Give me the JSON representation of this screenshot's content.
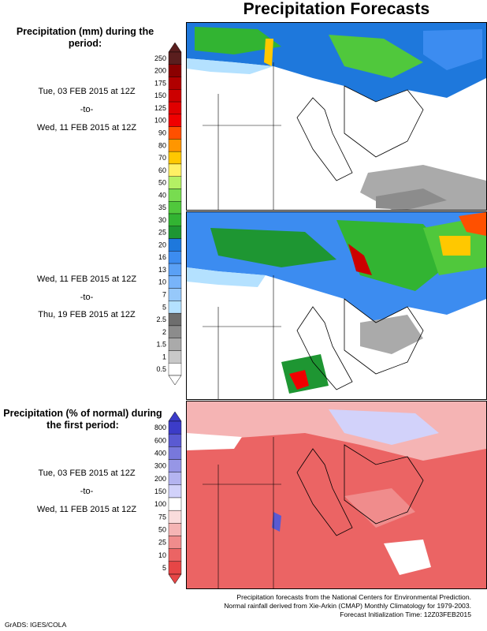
{
  "title": "Precipitation Forecasts",
  "precip_heading": "Precipitation (mm) during the period:",
  "period1": {
    "start": "Tue, 03 FEB 2015 at 12Z",
    "sep": "-to-",
    "end": "Wed, 11 FEB 2015 at 12Z"
  },
  "period2": {
    "start": "Wed, 11 FEB 2015 at 12Z",
    "sep": "-to-",
    "end": "Thu, 19 FEB 2015 at 12Z"
  },
  "pct_heading": "Precipitation (% of normal) during the first period:",
  "period3": {
    "start": "Tue, 03 FEB 2015 at 12Z",
    "sep": "-to-",
    "end": "Wed, 11 FEB 2015 at 12Z"
  },
  "mm_scale": {
    "labels": [
      "250",
      "200",
      "175",
      "150",
      "125",
      "100",
      "90",
      "80",
      "70",
      "60",
      "50",
      "40",
      "35",
      "30",
      "25",
      "20",
      "16",
      "13",
      "10",
      "7",
      "5",
      "2.5",
      "2",
      "1.5",
      "1",
      "0.5"
    ],
    "colors": [
      "#5a1e1e",
      "#8b0000",
      "#b00000",
      "#cc0000",
      "#e00000",
      "#f00000",
      "#ff5000",
      "#ff9600",
      "#ffc800",
      "#fff064",
      "#b4f064",
      "#78dc50",
      "#50c83c",
      "#32b432",
      "#1e9632",
      "#1e78dc",
      "#3c8cf0",
      "#5aa0f5",
      "#78b4fa",
      "#96c8fa",
      "#b4e1ff",
      "#6e6e6e",
      "#8c8c8c",
      "#aaaaaa",
      "#c8c8c8",
      "#ffffff"
    ]
  },
  "pct_scale": {
    "labels": [
      "800",
      "600",
      "400",
      "300",
      "200",
      "150",
      "100",
      "75",
      "50",
      "25",
      "10",
      "5"
    ],
    "colors": [
      "#3c3cc8",
      "#5a5ad2",
      "#7878dc",
      "#9696e6",
      "#b4b4f0",
      "#d2d2fa",
      "#ffffff",
      "#fadcdc",
      "#f5b4b4",
      "#f08c8c",
      "#eb6464",
      "#e64646"
    ]
  },
  "footer": {
    "line1": "Precipitation forecasts from the National Centers for Environmental Prediction.",
    "line2": "Normal rainfall derived from Xie-Arkin (CMAP) Monthly Climatology for 1979-2003.",
    "line3": "Forecast Initialization Time: 12Z03FEB2015"
  },
  "credit": "GrADS: IGES/COLA"
}
